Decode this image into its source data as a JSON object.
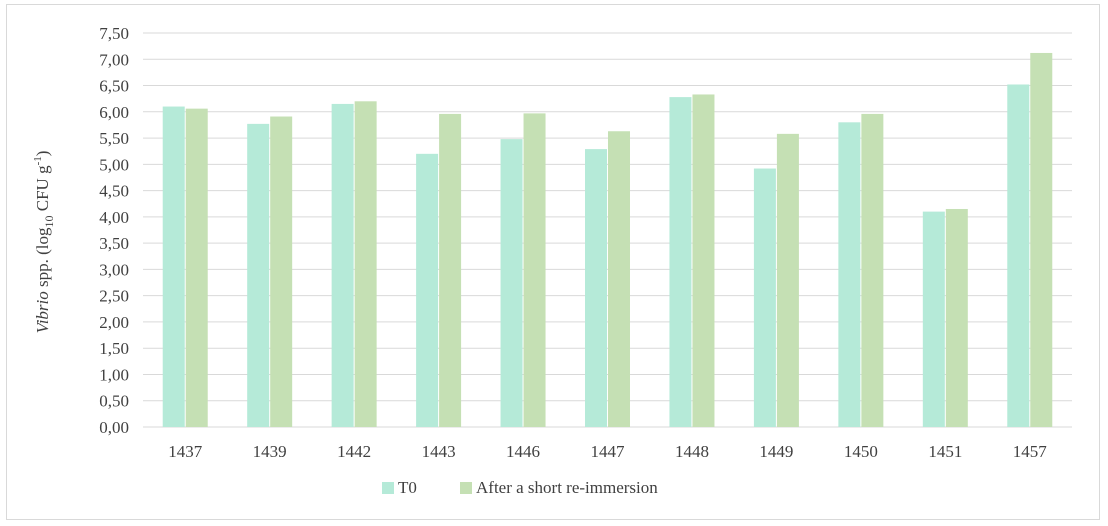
{
  "chart_data": {
    "type": "bar",
    "categories": [
      "1437",
      "1439",
      "1442",
      "1443",
      "1446",
      "1447",
      "1448",
      "1449",
      "1450",
      "1451",
      "1457"
    ],
    "series": [
      {
        "name": "T0",
        "color": "#b5ead8",
        "values": [
          6.1,
          5.77,
          6.15,
          5.2,
          5.48,
          5.29,
          6.28,
          4.92,
          5.8,
          4.1,
          6.52
        ]
      },
      {
        "name": "After a short re-immersion",
        "color": "#c5e0b4",
        "values": [
          6.06,
          5.91,
          6.2,
          5.96,
          5.97,
          5.63,
          6.33,
          5.58,
          5.96,
          4.15,
          7.12
        ]
      }
    ],
    "ylabel": {
      "italic": "Vibrio",
      "plain": " spp. (log",
      "sub": "10",
      "unit": " CFU g",
      "sup": "-1",
      "close": ")"
    },
    "y_ticks": [
      "0,00",
      "0,50",
      "1,00",
      "1,50",
      "2,00",
      "2,50",
      "3,00",
      "3,50",
      "4,00",
      "4,50",
      "5,00",
      "5,50",
      "6,00",
      "6,50",
      "7,00",
      "7,50"
    ],
    "ylim": [
      0,
      7.5
    ],
    "grid": true,
    "legend_position": "bottom",
    "gridline_color": "#d9d9d9"
  }
}
